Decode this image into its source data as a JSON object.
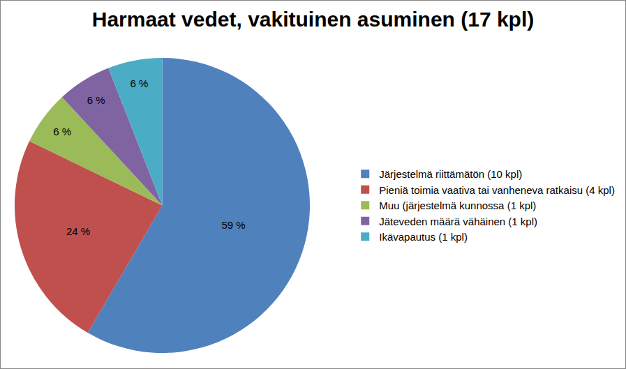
{
  "chart_data": {
    "type": "pie",
    "title": "Harmaat vedet, vakituinen asuminen (17 kpl)",
    "categories": [
      "Järjestelmä riittämätön (10 kpl)",
      "Pieniä toimia vaativa tai vanheneva ratkaisu (4 kpl)",
      "Muu (järjestelmä kunnossa (1 kpl)",
      "Jäteveden määrä vähäinen (1 kpl)",
      "Ikävapautus (1 kpl)"
    ],
    "values": [
      59,
      24,
      6,
      6,
      6
    ],
    "value_labels": [
      "59 %",
      "24 %",
      "6 %",
      "6 %",
      "6 %"
    ],
    "colors": [
      "#4f81bd",
      "#c0504d",
      "#9bbb59",
      "#8064a2",
      "#4bacc6"
    ],
    "data_labels": true,
    "legend": "right"
  }
}
